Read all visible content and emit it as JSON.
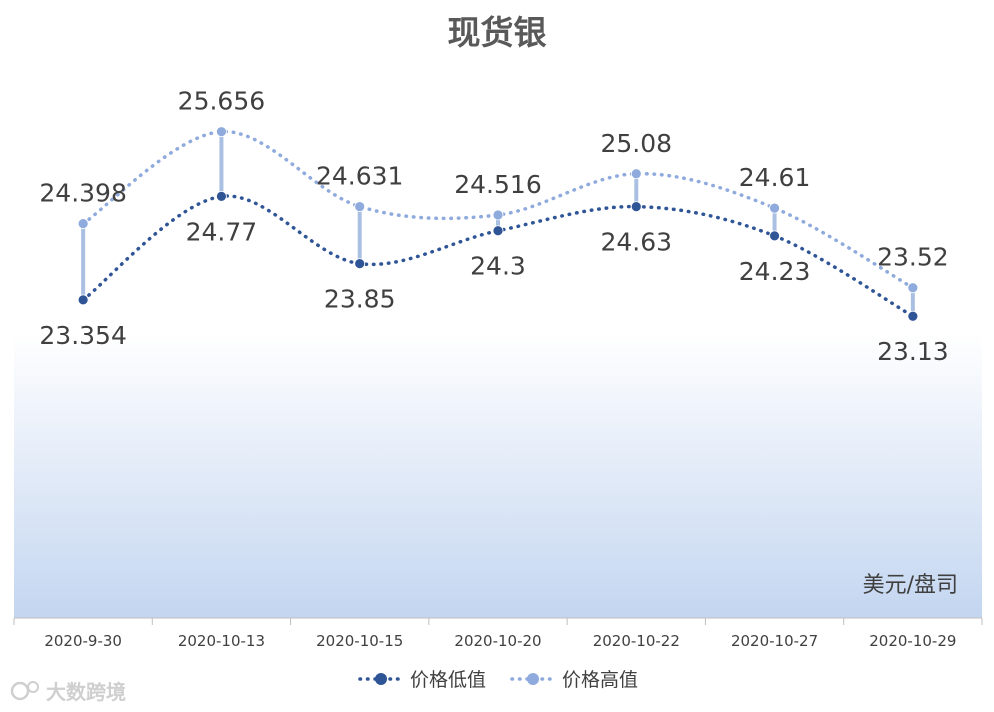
{
  "chart_data": {
    "type": "line",
    "title": "现货银",
    "unit_label": "美元/盘司",
    "categories": [
      "2020-9-30",
      "2020-10-13",
      "2020-10-15",
      "2020-10-20",
      "2020-10-22",
      "2020-10-27",
      "2020-10-29"
    ],
    "series": [
      {
        "name": "价格低值",
        "values": [
          23.354,
          24.77,
          23.85,
          24.3,
          24.63,
          24.23,
          23.13
        ],
        "labels": [
          "23.354",
          "24.77",
          "23.85",
          "24.3",
          "24.63",
          "24.23",
          "23.13"
        ],
        "color": "#2f5597",
        "label_position": "below"
      },
      {
        "name": "价格高值",
        "values": [
          24.398,
          25.656,
          24.631,
          24.516,
          25.08,
          24.61,
          23.52
        ],
        "labels": [
          "24.398",
          "25.656",
          "24.631",
          "24.516",
          "25.08",
          "24.61",
          "23.52"
        ],
        "color": "#8faadc",
        "label_position": "above"
      }
    ],
    "high_low_lines": true,
    "smoothed": true,
    "line_style": "dotted",
    "ylim": [
      19,
      26.5
    ],
    "grid": false,
    "legend_position": "bottom",
    "background": "gradient white to light blue"
  },
  "watermark": "大数跨境"
}
